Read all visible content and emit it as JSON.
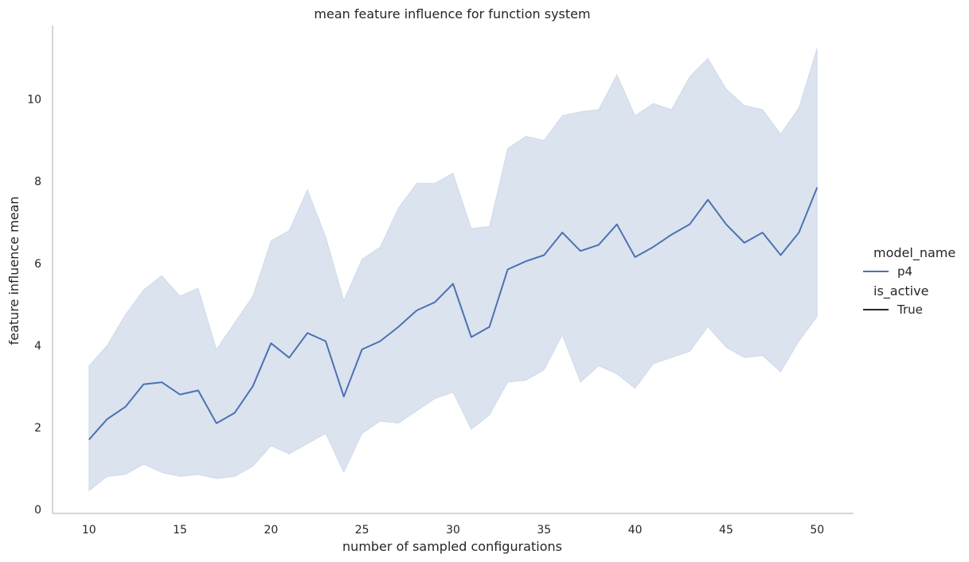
{
  "chart_data": {
    "type": "line",
    "title": "mean feature influence for function system",
    "xlabel": "number of sampled configurations",
    "ylabel": "feature influence mean",
    "xlim": [
      8,
      52
    ],
    "ylim": [
      -0.1,
      11.8
    ],
    "xticks": [
      10,
      15,
      20,
      25,
      30,
      35,
      40,
      45,
      50
    ],
    "yticks": [
      0,
      2,
      4,
      6,
      8,
      10
    ],
    "grid": false,
    "legend_position": "right",
    "x": [
      10,
      11,
      12,
      13,
      14,
      15,
      16,
      17,
      18,
      19,
      20,
      21,
      22,
      23,
      24,
      25,
      26,
      27,
      28,
      29,
      30,
      31,
      32,
      33,
      34,
      35,
      36,
      37,
      38,
      39,
      40,
      41,
      42,
      43,
      44,
      45,
      46,
      47,
      48,
      49,
      50
    ],
    "series": [
      {
        "name": "p4",
        "color": "#4c72b0",
        "values": [
          1.7,
          2.2,
          2.5,
          3.05,
          3.1,
          2.8,
          2.9,
          2.1,
          2.35,
          3.0,
          4.05,
          3.7,
          4.3,
          4.1,
          2.75,
          3.9,
          4.1,
          4.45,
          4.85,
          5.05,
          5.5,
          4.2,
          4.45,
          5.85,
          6.05,
          6.2,
          6.75,
          6.3,
          6.45,
          6.95,
          6.15,
          6.4,
          6.7,
          6.95,
          7.55,
          6.95,
          6.5,
          6.75,
          6.2,
          6.75,
          7.85
        ],
        "ci_lower": [
          0.45,
          0.8,
          0.85,
          1.1,
          0.9,
          0.8,
          0.85,
          0.75,
          0.8,
          1.05,
          1.55,
          1.35,
          1.6,
          1.85,
          0.9,
          1.85,
          2.15,
          2.1,
          2.4,
          2.7,
          2.85,
          1.95,
          2.3,
          3.1,
          3.15,
          3.4,
          4.25,
          3.1,
          3.5,
          3.3,
          2.95,
          3.55,
          3.7,
          3.85,
          4.45,
          3.95,
          3.7,
          3.75,
          3.35,
          4.1,
          4.7
        ],
        "ci_upper": [
          3.5,
          4.0,
          4.75,
          5.35,
          5.7,
          5.2,
          5.4,
          3.9,
          4.55,
          5.2,
          6.55,
          6.8,
          7.8,
          6.65,
          5.1,
          6.1,
          6.4,
          7.35,
          7.95,
          7.95,
          8.2,
          6.85,
          6.9,
          8.8,
          9.1,
          9.0,
          9.6,
          9.7,
          9.75,
          10.6,
          9.6,
          9.9,
          9.75,
          10.55,
          11.0,
          10.25,
          9.85,
          9.75,
          9.15,
          9.8,
          11.25
        ]
      }
    ],
    "legend": {
      "hue_title": "model_name",
      "hue_entries": [
        {
          "label": "p4",
          "color": "#4c72b0"
        }
      ],
      "style_title": "is_active",
      "style_entries": [
        {
          "label": "True",
          "color": "#262626"
        }
      ]
    }
  }
}
